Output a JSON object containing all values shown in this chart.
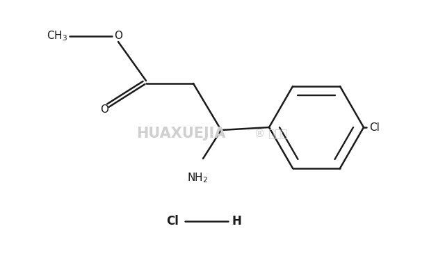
{
  "bg_color": "#ffffff",
  "line_color": "#1a1a1a",
  "watermark_color": "#d0d0d0",
  "line_width": 1.8,
  "font_size_label": 11,
  "font_size_hcl": 12,
  "ring_cl_label": "Cl",
  "hcl_cl_label": "Cl",
  "hcl_h_label": "H",
  "ch3_label": "CH$_3$",
  "o_ether_label": "O",
  "o_carbonyl_label": "O",
  "nh2_label": "NH$_2$"
}
